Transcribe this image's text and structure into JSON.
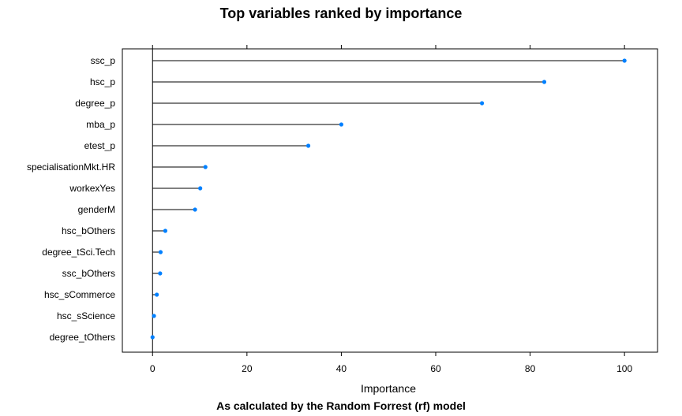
{
  "chart_data": {
    "type": "dotplot",
    "title": "Top variables ranked by importance",
    "xlabel": "Importance",
    "subtitle": "As calculated by the Random Forrest (rf) model",
    "xlim": [
      -6.4,
      107.0
    ],
    "xticks": [
      0,
      20,
      40,
      60,
      80,
      100
    ],
    "categories": [
      "ssc_p",
      "hsc_p",
      "degree_p",
      "mba_p",
      "etest_p",
      "specialisationMkt.HR",
      "workexYes",
      "genderM",
      "hsc_bOthers",
      "degree_tSci.Tech",
      "ssc_bOthers",
      "hsc_sCommerce",
      "hsc_sScience",
      "degree_tOthers"
    ],
    "values": [
      100,
      83,
      69.8,
      40,
      33,
      11.2,
      10.1,
      9,
      2.7,
      1.7,
      1.6,
      0.9,
      0.3,
      0
    ],
    "point_color": "#0080ff",
    "line_color": "#000000"
  }
}
